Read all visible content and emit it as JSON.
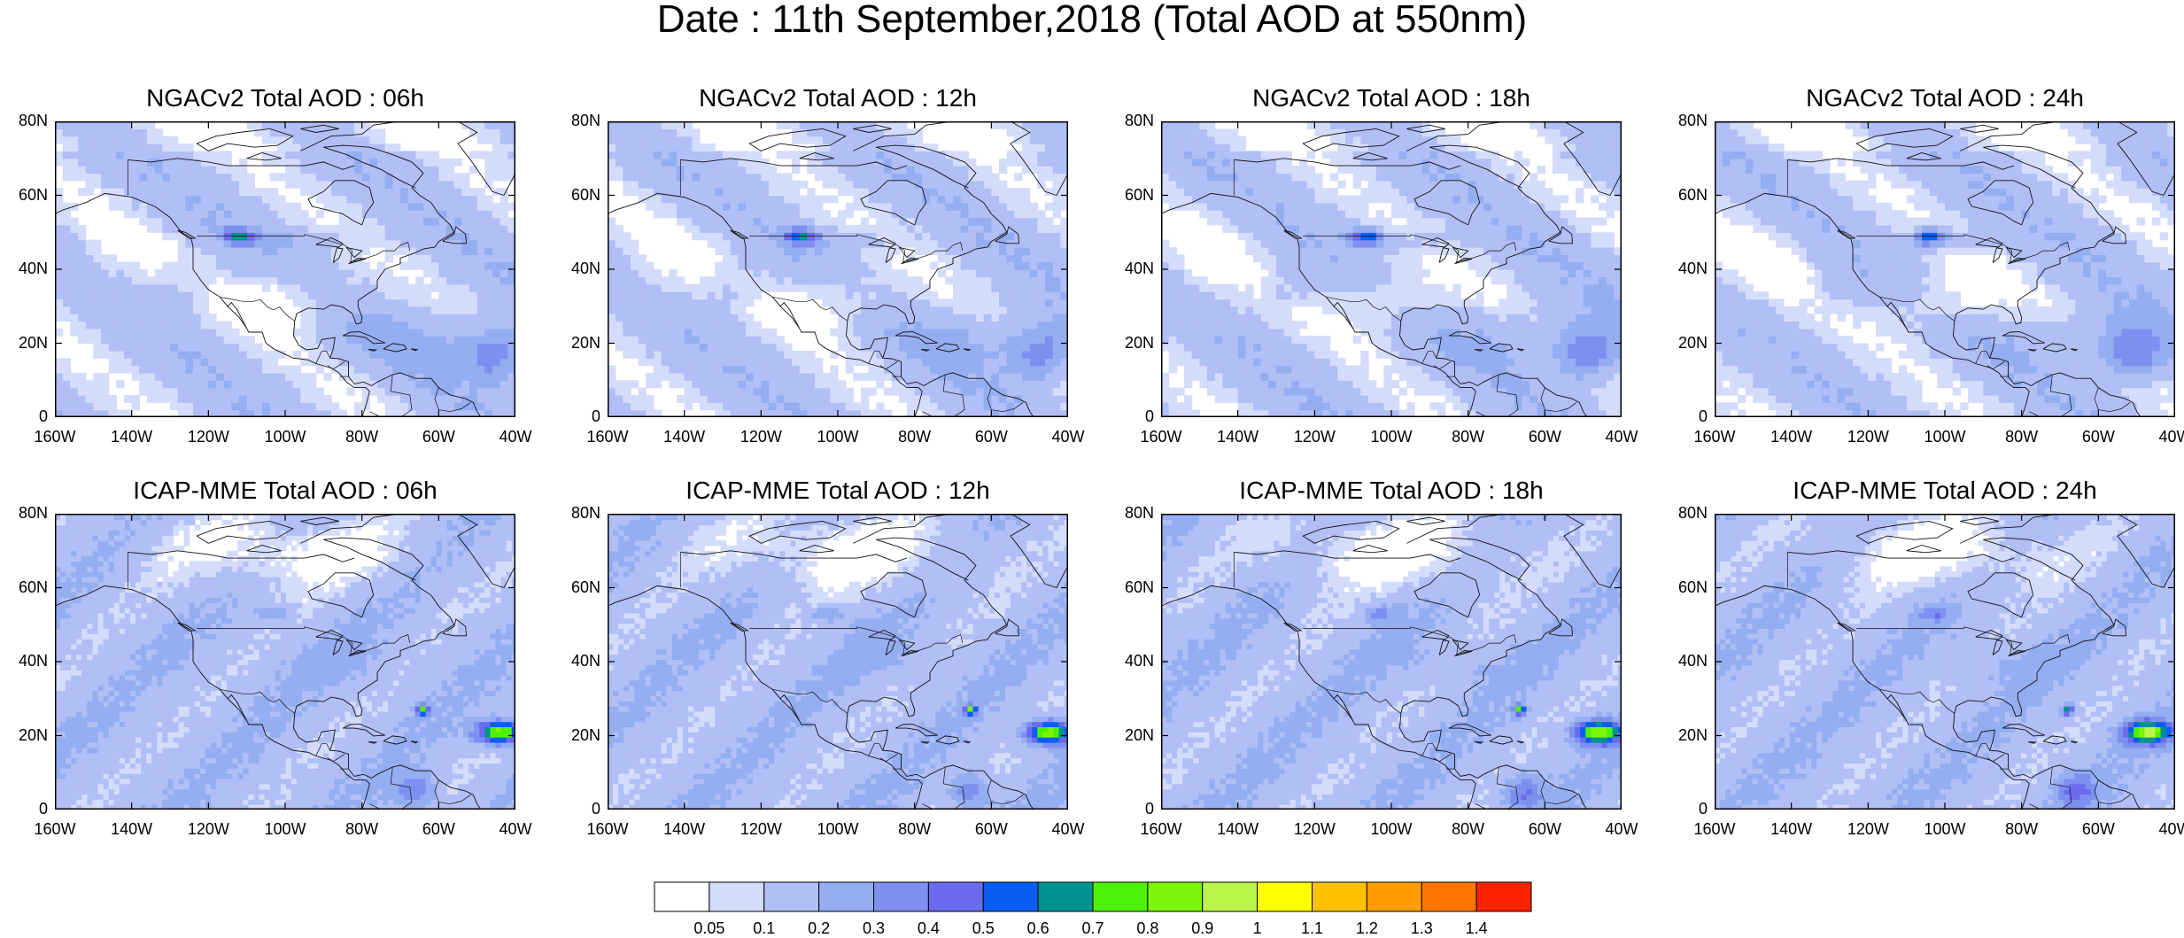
{
  "title": "Date : 11th September,2018 (Total AOD at 550nm)",
  "panels": [
    {
      "title": "NGACv2 Total AOD : 06h",
      "model": "ngac",
      "hour": 6
    },
    {
      "title": "NGACv2 Total AOD : 12h",
      "model": "ngac",
      "hour": 12
    },
    {
      "title": "NGACv2 Total AOD : 18h",
      "model": "ngac",
      "hour": 18
    },
    {
      "title": "NGACv2 Total AOD : 24h",
      "model": "ngac",
      "hour": 24
    },
    {
      "title": "ICAP-MME Total AOD : 06h",
      "model": "icap",
      "hour": 6
    },
    {
      "title": "ICAP-MME Total AOD : 12h",
      "model": "icap",
      "hour": 12
    },
    {
      "title": "ICAP-MME Total AOD : 18h",
      "model": "icap",
      "hour": 18
    },
    {
      "title": "ICAP-MME Total AOD : 24h",
      "model": "icap",
      "hour": 24
    }
  ],
  "map": {
    "lon_range": [
      -160,
      -40
    ],
    "lat_range": [
      0,
      80
    ],
    "x_ticks": [
      "160W",
      "140W",
      "120W",
      "100W",
      "80W",
      "60W",
      "40W"
    ],
    "y_ticks": [
      "0",
      "20N",
      "40N",
      "60N",
      "80N"
    ]
  },
  "colorbar": {
    "labels": [
      "0.05",
      "0.1",
      "0.2",
      "0.3",
      "0.4",
      "0.5",
      "0.6",
      "0.7",
      "0.8",
      "0.9",
      "1",
      "1.1",
      "1.2",
      "1.3",
      "1.4"
    ],
    "colors": [
      "#ffffff",
      "#d4dcfb",
      "#b0bff5",
      "#95adf1",
      "#7f8ff0",
      "#6b6bf0",
      "#0a5ef5",
      "#009191",
      "#4ef00a",
      "#7cf50a",
      "#bcf54a",
      "#ffff00",
      "#ffc000",
      "#ff9d00",
      "#ff7700",
      "#ff2200"
    ]
  }
}
